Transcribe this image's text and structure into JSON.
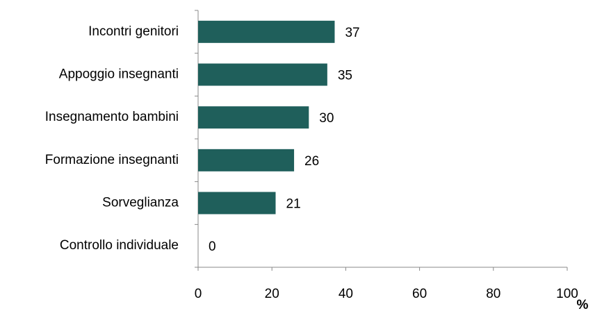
{
  "chart_data": {
    "type": "bar",
    "orientation": "horizontal",
    "categories": [
      "Incontri genitori",
      "Appoggio insegnanti",
      "Insegnamento bambini",
      "Formazione insegnanti",
      "Sorveglianza",
      "Controllo individuale"
    ],
    "values": [
      37,
      35,
      30,
      26,
      21,
      0
    ],
    "color": "#1f5f5b",
    "xlim": [
      0,
      100
    ],
    "xticks": [
      0,
      20,
      40,
      60,
      80,
      100
    ],
    "xlabel": "%",
    "grid": false
  }
}
